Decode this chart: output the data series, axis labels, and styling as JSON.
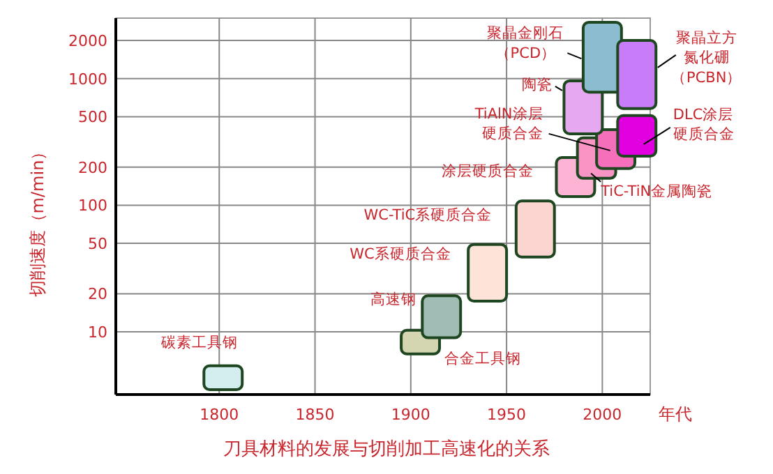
{
  "chart_data": {
    "type": "bar",
    "title": "刀具材料的发展与切削加工高速化的关系",
    "xlabel": "年代",
    "ylabel": "切削速度（m/min）",
    "log": true,
    "grid": true,
    "xlim": [
      1746,
      2025
    ],
    "xticks": [
      1800,
      1850,
      1900,
      1950,
      2000
    ],
    "ylim": [
      3.2,
      3000
    ],
    "yticks": [
      10,
      20,
      50,
      100,
      200,
      500,
      1000,
      2000
    ],
    "series": [
      {
        "name": "碳素工具钢",
        "color": "#d4eef0",
        "x": [
          1802
        ],
        "base": [
          3.5
        ],
        "values": [
          1.9
        ]
      },
      {
        "name": "合金工具钢",
        "color": "#d3d6b0",
        "x": [
          1905
        ],
        "base": [
          6.7
        ],
        "values": [
          3.6
        ]
      },
      {
        "name": "高速钢",
        "color": "#9fbdb5",
        "x": [
          1916
        ],
        "base": [
          9
        ],
        "values": [
          10.3
        ]
      },
      {
        "name": "WC系硬质合金",
        "color": "#fde3d8",
        "x": [
          1940
        ],
        "base": [
          17.5
        ],
        "values": [
          31.5
        ]
      },
      {
        "name": "WC-TiC系硬质合金",
        "color": "#fdd5d0",
        "x": [
          1965
        ],
        "base": [
          39
        ],
        "values": [
          69
        ]
      },
      {
        "name": "涂层硬质合金",
        "color": "#fdb4d4",
        "x": [
          1986
        ],
        "base": [
          117
        ],
        "values": [
          121
        ]
      },
      {
        "name": "TiC-TiN金属陶瓷",
        "color": "#f994c4",
        "x": [
          1997
        ],
        "base": [
          163
        ],
        "values": [
          177
        ]
      },
      {
        "name": "TiAlN涂层硬质合金",
        "color": "#f56fba",
        "x": [
          2007
        ],
        "base": [
          195
        ],
        "values": [
          200
        ]
      },
      {
        "name": "DLC涂层硬质合金",
        "color": "#e000e0",
        "x": [
          2018
        ],
        "base": [
          244
        ],
        "values": [
          266
        ]
      },
      {
        "name": "陶瓷",
        "color": "#e6a8f0",
        "x": [
          1990
        ],
        "base": [
          366
        ],
        "values": [
          594
        ]
      },
      {
        "name": "聚晶金刚石（PCD）",
        "color": "#8bbccf",
        "x": [
          2000
        ],
        "base": [
          780
        ],
        "values": [
          2000
        ]
      },
      {
        "name": "聚晶立方氮化硼（PCBN）",
        "color": "#c97cf7",
        "x": [
          2018
        ],
        "base": [
          580
        ],
        "values": [
          1420
        ]
      }
    ]
  }
}
